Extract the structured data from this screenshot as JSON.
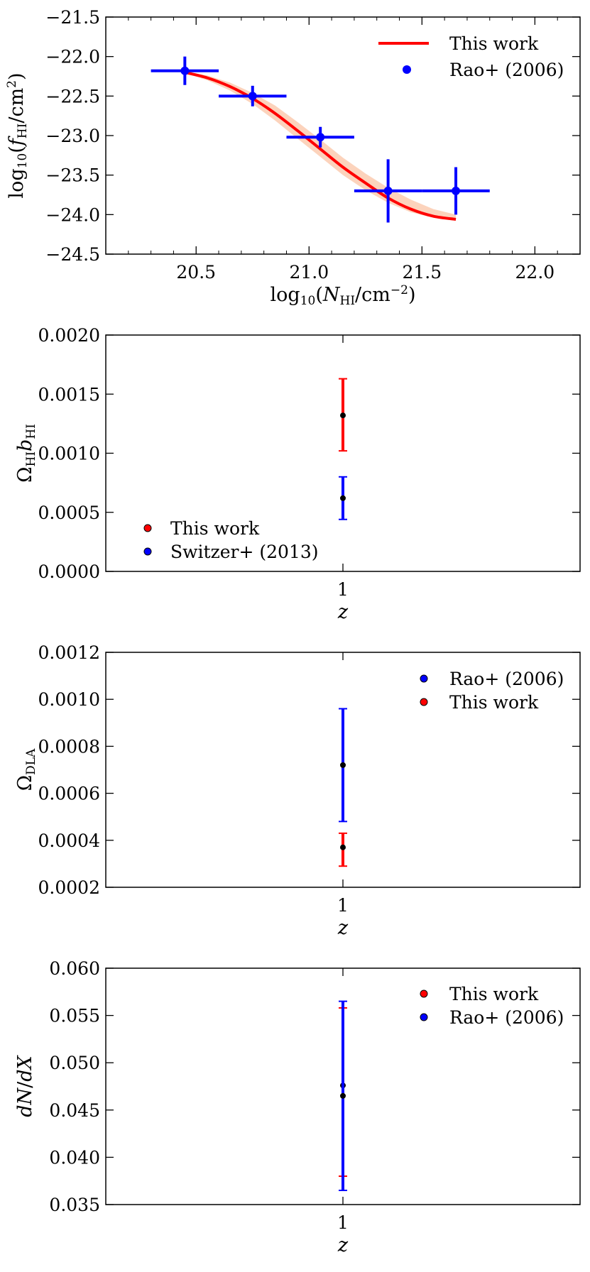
{
  "chart_data": [
    {
      "type": "line",
      "xlabel": "log10(NHI/cm−2)",
      "ylabel": "log10(fHI/cm2)",
      "xlim": [
        20.1,
        22.2
      ],
      "ylim": [
        -24.5,
        -21.5
      ],
      "xticks": [
        20.5,
        21.0,
        21.5,
        22.0
      ],
      "xtick_labels": [
        "20.5",
        "21.0",
        "21.5",
        "22.0"
      ],
      "yticks": [
        -21.5,
        -22.0,
        -22.5,
        -23.0,
        -23.5,
        -24.0,
        -24.5
      ],
      "ytick_labels": [
        "−21.5",
        "−22.0",
        "−22.5",
        "−23.0",
        "−23.5",
        "−24.0",
        "−24.5"
      ],
      "legend_position": "top-right",
      "legend": [
        "This work",
        "Rao+ (2006)"
      ],
      "series": [
        {
          "name": "This work",
          "kind": "line",
          "color": "#ff0000",
          "band_color": "#fcd3bc",
          "x": [
            20.45,
            20.55,
            20.65,
            20.75,
            20.85,
            20.95,
            21.05,
            21.15,
            21.25,
            21.35,
            21.45,
            21.55,
            21.65
          ],
          "y": [
            -22.2,
            -22.27,
            -22.38,
            -22.53,
            -22.72,
            -22.94,
            -23.17,
            -23.4,
            -23.6,
            -23.79,
            -23.93,
            -24.02,
            -24.06
          ],
          "band_low": [
            -22.21,
            -22.3,
            -22.43,
            -22.6,
            -22.81,
            -23.04,
            -23.27,
            -23.5,
            -23.69,
            -23.85,
            -23.97,
            -24.04,
            -24.08
          ],
          "band_high": [
            -22.19,
            -22.24,
            -22.33,
            -22.46,
            -22.62,
            -22.83,
            -23.05,
            -23.28,
            -23.48,
            -23.66,
            -23.81,
            -23.93,
            -24.0
          ]
        },
        {
          "name": "Rao+ (2006)",
          "kind": "errorbar",
          "color": "#0000ff",
          "x": [
            20.45,
            20.75,
            21.05,
            21.35,
            21.65
          ],
          "y": [
            -22.18,
            -22.5,
            -23.02,
            -23.7,
            -23.7
          ],
          "xerr": [
            0.15,
            0.15,
            0.15,
            0.15,
            0.15
          ],
          "yerr": [
            0.18,
            0.13,
            0.13,
            0.4,
            0.3
          ]
        }
      ]
    },
    {
      "type": "scatter",
      "xlabel": "z",
      "ylabel": "ΩHIbHI",
      "xlim": [
        0.5,
        1.5
      ],
      "ylim": [
        0.0,
        0.002
      ],
      "xticks": [
        1
      ],
      "xtick_labels": [
        "1"
      ],
      "yticks": [
        0.0,
        0.0005,
        0.001,
        0.0015,
        0.002
      ],
      "ytick_labels": [
        "0.0000",
        "0.0005",
        "0.0010",
        "0.0015",
        "0.0020"
      ],
      "legend_position": "bottom-left",
      "legend": [
        "This work",
        "Switzer+ (2013)"
      ],
      "series": [
        {
          "name": "This work",
          "color": "#ff0000",
          "x": [
            1
          ],
          "y": [
            0.00132
          ],
          "err_low": [
            0.00102
          ],
          "err_high": [
            0.00163
          ]
        },
        {
          "name": "Switzer+ (2013)",
          "color": "#0000ff",
          "x": [
            1
          ],
          "y": [
            0.00062
          ],
          "err_low": [
            0.00044
          ],
          "err_high": [
            0.0008
          ]
        }
      ]
    },
    {
      "type": "scatter",
      "xlabel": "z",
      "ylabel": "ΩDLA",
      "xlim": [
        0.5,
        1.5
      ],
      "ylim": [
        0.0002,
        0.0012
      ],
      "xticks": [
        1
      ],
      "xtick_labels": [
        "1"
      ],
      "yticks": [
        0.0002,
        0.0004,
        0.0006,
        0.0008,
        0.001,
        0.0012
      ],
      "ytick_labels": [
        "0.0002",
        "0.0004",
        "0.0006",
        "0.0008",
        "0.0010",
        "0.0012"
      ],
      "legend_position": "top-right",
      "legend": [
        "Rao+ (2006)",
        "This work"
      ],
      "series": [
        {
          "name": "Rao+ (2006)",
          "color": "#0000ff",
          "x": [
            1
          ],
          "y": [
            0.00072
          ],
          "err_low": [
            0.00048
          ],
          "err_high": [
            0.00096
          ]
        },
        {
          "name": "This work",
          "color": "#ff0000",
          "x": [
            1
          ],
          "y": [
            0.00037
          ],
          "err_low": [
            0.00029
          ],
          "err_high": [
            0.00043
          ]
        }
      ]
    },
    {
      "type": "scatter",
      "xlabel": "z",
      "ylabel": "dN/dX",
      "xlim": [
        0.5,
        1.5
      ],
      "ylim": [
        0.035,
        0.06
      ],
      "xticks": [
        1
      ],
      "xtick_labels": [
        "1"
      ],
      "yticks": [
        0.035,
        0.04,
        0.045,
        0.05,
        0.055,
        0.06
      ],
      "ytick_labels": [
        "0.035",
        "0.040",
        "0.045",
        "0.050",
        "0.055",
        "0.060"
      ],
      "legend_position": "top-right",
      "legend": [
        "This work",
        "Rao+ (2006)"
      ],
      "series": [
        {
          "name": "This work",
          "color": "#ff0000",
          "x": [
            1
          ],
          "y": [
            0.0476
          ],
          "err_low": [
            0.038
          ],
          "err_high": [
            0.0558
          ]
        },
        {
          "name": "Rao+ (2006)",
          "color": "#0000ff",
          "x": [
            1
          ],
          "y": [
            0.0465
          ],
          "err_low": [
            0.0365
          ],
          "err_high": [
            0.0565
          ]
        }
      ]
    }
  ]
}
